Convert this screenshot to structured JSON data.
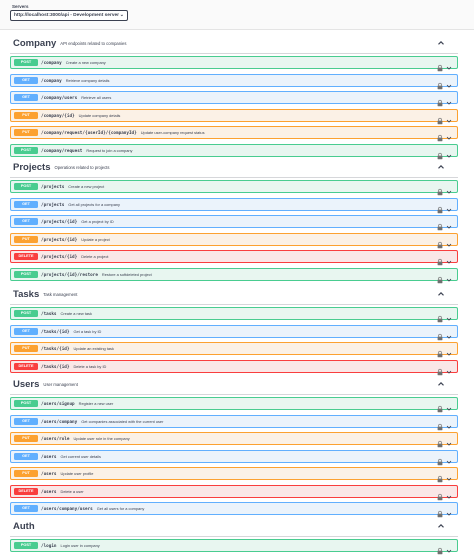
{
  "servers": {
    "label": "Servers",
    "selected": "http://localhost:3000/api - Development server"
  },
  "sections": [
    {
      "name": "Company",
      "description": "API endpoints related to companies",
      "ops": [
        {
          "method": "POST",
          "path": "/company",
          "summary": "Create a new company"
        },
        {
          "method": "GET",
          "path": "/company",
          "summary": "Retrieve company details"
        },
        {
          "method": "GET",
          "path": "/company/users",
          "summary": "Retrieve all users"
        },
        {
          "method": "PUT",
          "path": "/company/{id}",
          "summary": "Update company details"
        },
        {
          "method": "PUT",
          "path": "/company/request/{userId}/{companyId}",
          "summary": "Update user-company request status"
        },
        {
          "method": "POST",
          "path": "/company/request",
          "summary": "Request to join a company"
        }
      ]
    },
    {
      "name": "Projects",
      "description": "Operations related to projects",
      "ops": [
        {
          "method": "POST",
          "path": "/projects",
          "summary": "Create a new project"
        },
        {
          "method": "GET",
          "path": "/projects",
          "summary": "Get all projects for a company"
        },
        {
          "method": "GET",
          "path": "/projects/{id}",
          "summary": "Get a project by ID"
        },
        {
          "method": "PUT",
          "path": "/projects/{id}",
          "summary": "Update a project"
        },
        {
          "method": "DELETE",
          "path": "/projects/{id}",
          "summary": "Delete a project"
        },
        {
          "method": "POST",
          "path": "/projects/{id}/restore",
          "summary": "Restore a softdeleted project"
        }
      ]
    },
    {
      "name": "Tasks",
      "description": "Task management",
      "ops": [
        {
          "method": "POST",
          "path": "/tasks",
          "summary": "Create a new task"
        },
        {
          "method": "GET",
          "path": "/tasks/{id}",
          "summary": "Get a task by ID"
        },
        {
          "method": "PUT",
          "path": "/tasks/{id}",
          "summary": "Update an existing task"
        },
        {
          "method": "DELETE",
          "path": "/tasks/{id}",
          "summary": "Delete a task by ID"
        }
      ]
    },
    {
      "name": "Users",
      "description": "User management",
      "ops": [
        {
          "method": "POST",
          "path": "/users/signup",
          "summary": "Register a new user"
        },
        {
          "method": "GET",
          "path": "/users/company",
          "summary": "Get companies associated with the current user"
        },
        {
          "method": "PUT",
          "path": "/users/role",
          "summary": "Update user role in the company"
        },
        {
          "method": "GET",
          "path": "/users",
          "summary": "Get current user details"
        },
        {
          "method": "PUT",
          "path": "/users",
          "summary": "Update user profile"
        },
        {
          "method": "DELETE",
          "path": "/users",
          "summary": "Delete a user"
        },
        {
          "method": "GET",
          "path": "/users/company/users",
          "summary": "Get all users for a company"
        }
      ]
    },
    {
      "name": "Auth",
      "description": "",
      "ops": [
        {
          "method": "POST",
          "path": "/login",
          "summary": "Login user in company"
        }
      ]
    }
  ],
  "icons": {
    "section_toggle": "chevron-up-icon",
    "lock": "lock-icon",
    "expand": "chevron-down-icon"
  },
  "colors": {
    "post": "#49cc90",
    "get": "#61affe",
    "put": "#fca130",
    "delete": "#f93e3e"
  }
}
